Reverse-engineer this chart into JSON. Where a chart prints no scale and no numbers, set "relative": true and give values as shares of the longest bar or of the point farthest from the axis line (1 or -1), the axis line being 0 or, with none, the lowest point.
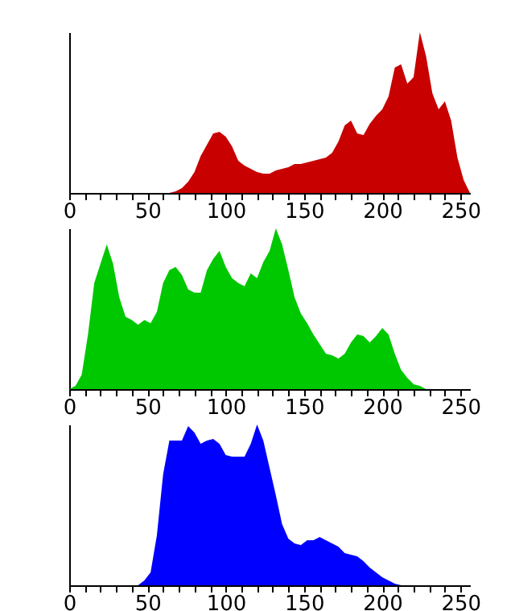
{
  "chart_data": [
    {
      "type": "area",
      "relative": true,
      "color": "#c80000",
      "xlim": [
        0,
        256
      ],
      "grid": false,
      "xticks": [
        0,
        {
          "value": 10,
          "label": null
        },
        {
          "value": 20,
          "label": null
        },
        {
          "value": 30,
          "label": null
        },
        {
          "value": 40,
          "label": null
        },
        50,
        {
          "value": 60,
          "label": null
        },
        {
          "value": 70,
          "label": null
        },
        {
          "value": 80,
          "label": null
        },
        {
          "value": 90,
          "label": null
        },
        100,
        {
          "value": 110,
          "label": null
        },
        {
          "value": 120,
          "label": null
        },
        {
          "value": 130,
          "label": null
        },
        {
          "value": 140,
          "label": null
        },
        150,
        {
          "value": 160,
          "label": null
        },
        {
          "value": 170,
          "label": null
        },
        {
          "value": 180,
          "label": null
        },
        {
          "value": 190,
          "label": null
        },
        200,
        {
          "value": 210,
          "label": null
        },
        {
          "value": 220,
          "label": null
        },
        {
          "value": 230,
          "label": null
        },
        {
          "value": 240,
          "label": null
        },
        250
      ],
      "x": [
        0,
        4,
        8,
        12,
        16,
        20,
        24,
        28,
        32,
        36,
        40,
        44,
        48,
        52,
        56,
        60,
        64,
        68,
        72,
        76,
        80,
        84,
        88,
        92,
        96,
        100,
        104,
        108,
        112,
        116,
        120,
        124,
        128,
        132,
        136,
        140,
        144,
        148,
        152,
        156,
        160,
        164,
        168,
        172,
        176,
        180,
        184,
        188,
        192,
        196,
        200,
        204,
        208,
        212,
        216,
        220,
        224,
        228,
        232,
        236,
        240,
        244,
        248,
        252,
        256
      ],
      "values": [
        0,
        0,
        0,
        0,
        0,
        0,
        0,
        0,
        0,
        0,
        0,
        0,
        0,
        0,
        0,
        0,
        0,
        0.01,
        0.03,
        0.07,
        0.13,
        0.23,
        0.3,
        0.37,
        0.38,
        0.35,
        0.29,
        0.2,
        0.17,
        0.15,
        0.13,
        0.12,
        0.12,
        0.14,
        0.15,
        0.16,
        0.18,
        0.18,
        0.19,
        0.2,
        0.21,
        0.22,
        0.25,
        0.32,
        0.42,
        0.45,
        0.37,
        0.36,
        0.43,
        0.48,
        0.52,
        0.6,
        0.78,
        0.8,
        0.68,
        0.72,
        1,
        0.85,
        0.62,
        0.52,
        0.57,
        0.45,
        0.22,
        0.08,
        0
      ]
    },
    {
      "type": "area",
      "relative": true,
      "color": "#00c800",
      "xlim": [
        0,
        256
      ],
      "grid": false,
      "xticks": [
        0,
        {
          "value": 10,
          "label": null
        },
        {
          "value": 20,
          "label": null
        },
        {
          "value": 30,
          "label": null
        },
        {
          "value": 40,
          "label": null
        },
        50,
        {
          "value": 60,
          "label": null
        },
        {
          "value": 70,
          "label": null
        },
        {
          "value": 80,
          "label": null
        },
        {
          "value": 90,
          "label": null
        },
        100,
        {
          "value": 110,
          "label": null
        },
        {
          "value": 120,
          "label": null
        },
        {
          "value": 130,
          "label": null
        },
        {
          "value": 140,
          "label": null
        },
        150,
        {
          "value": 160,
          "label": null
        },
        {
          "value": 170,
          "label": null
        },
        {
          "value": 180,
          "label": null
        },
        {
          "value": 190,
          "label": null
        },
        200,
        {
          "value": 210,
          "label": null
        },
        {
          "value": 220,
          "label": null
        },
        {
          "value": 230,
          "label": null
        },
        {
          "value": 240,
          "label": null
        },
        250
      ],
      "x": [
        0,
        4,
        8,
        12,
        16,
        20,
        24,
        28,
        32,
        36,
        40,
        44,
        48,
        52,
        56,
        60,
        64,
        68,
        72,
        76,
        80,
        84,
        88,
        92,
        96,
        100,
        104,
        108,
        112,
        116,
        120,
        124,
        128,
        132,
        136,
        140,
        144,
        148,
        152,
        156,
        160,
        164,
        168,
        172,
        176,
        180,
        184,
        188,
        192,
        196,
        200,
        204,
        208,
        212,
        216,
        220,
        224,
        228,
        232,
        236,
        240,
        244,
        248,
        252,
        256
      ],
      "values": [
        0,
        0.02,
        0.09,
        0.34,
        0.66,
        0.78,
        0.9,
        0.78,
        0.57,
        0.45,
        0.43,
        0.4,
        0.43,
        0.41,
        0.48,
        0.66,
        0.74,
        0.76,
        0.71,
        0.62,
        0.6,
        0.6,
        0.74,
        0.81,
        0.86,
        0.76,
        0.69,
        0.66,
        0.64,
        0.72,
        0.69,
        0.79,
        0.86,
        1,
        0.9,
        0.74,
        0.57,
        0.47,
        0.41,
        0.34,
        0.28,
        0.22,
        0.21,
        0.19,
        0.22,
        0.29,
        0.34,
        0.33,
        0.29,
        0.33,
        0.38,
        0.34,
        0.22,
        0.12,
        0.07,
        0.03,
        0.02,
        0,
        0,
        0,
        0,
        0,
        0,
        0,
        0
      ]
    },
    {
      "type": "area",
      "relative": true,
      "color": "#0000ff",
      "xlim": [
        0,
        256
      ],
      "grid": false,
      "xticks": [
        0,
        {
          "value": 10,
          "label": null
        },
        {
          "value": 20,
          "label": null
        },
        {
          "value": 30,
          "label": null
        },
        {
          "value": 40,
          "label": null
        },
        50,
        {
          "value": 60,
          "label": null
        },
        {
          "value": 70,
          "label": null
        },
        {
          "value": 80,
          "label": null
        },
        {
          "value": 90,
          "label": null
        },
        100,
        {
          "value": 110,
          "label": null
        },
        {
          "value": 120,
          "label": null
        },
        {
          "value": 130,
          "label": null
        },
        {
          "value": 140,
          "label": null
        },
        150,
        {
          "value": 160,
          "label": null
        },
        {
          "value": 170,
          "label": null
        },
        {
          "value": 180,
          "label": null
        },
        {
          "value": 190,
          "label": null
        },
        200,
        {
          "value": 210,
          "label": null
        },
        {
          "value": 220,
          "label": null
        },
        {
          "value": 230,
          "label": null
        },
        {
          "value": 240,
          "label": null
        },
        250
      ],
      "x": [
        0,
        4,
        8,
        12,
        16,
        20,
        24,
        28,
        32,
        36,
        40,
        44,
        48,
        52,
        56,
        60,
        64,
        68,
        72,
        76,
        80,
        84,
        88,
        92,
        96,
        100,
        104,
        108,
        112,
        116,
        120,
        124,
        128,
        132,
        136,
        140,
        144,
        148,
        152,
        156,
        160,
        164,
        168,
        172,
        176,
        180,
        184,
        188,
        192,
        196,
        200,
        204,
        208,
        212,
        216,
        220,
        224,
        228,
        232,
        236,
        240,
        244,
        248,
        252,
        256
      ],
      "values": [
        0,
        0,
        0,
        0,
        0,
        0,
        0,
        0,
        0,
        0,
        0,
        0,
        0.03,
        0.08,
        0.31,
        0.69,
        0.9,
        0.9,
        0.9,
        0.99,
        0.95,
        0.88,
        0.9,
        0.91,
        0.88,
        0.81,
        0.8,
        0.8,
        0.8,
        0.88,
        1,
        0.9,
        0.73,
        0.56,
        0.38,
        0.29,
        0.26,
        0.25,
        0.28,
        0.28,
        0.3,
        0.28,
        0.26,
        0.24,
        0.2,
        0.19,
        0.18,
        0.15,
        0.11,
        0.08,
        0.05,
        0.03,
        0.01,
        0,
        0,
        0,
        0,
        0,
        0,
        0,
        0,
        0,
        0,
        0,
        0
      ]
    }
  ]
}
